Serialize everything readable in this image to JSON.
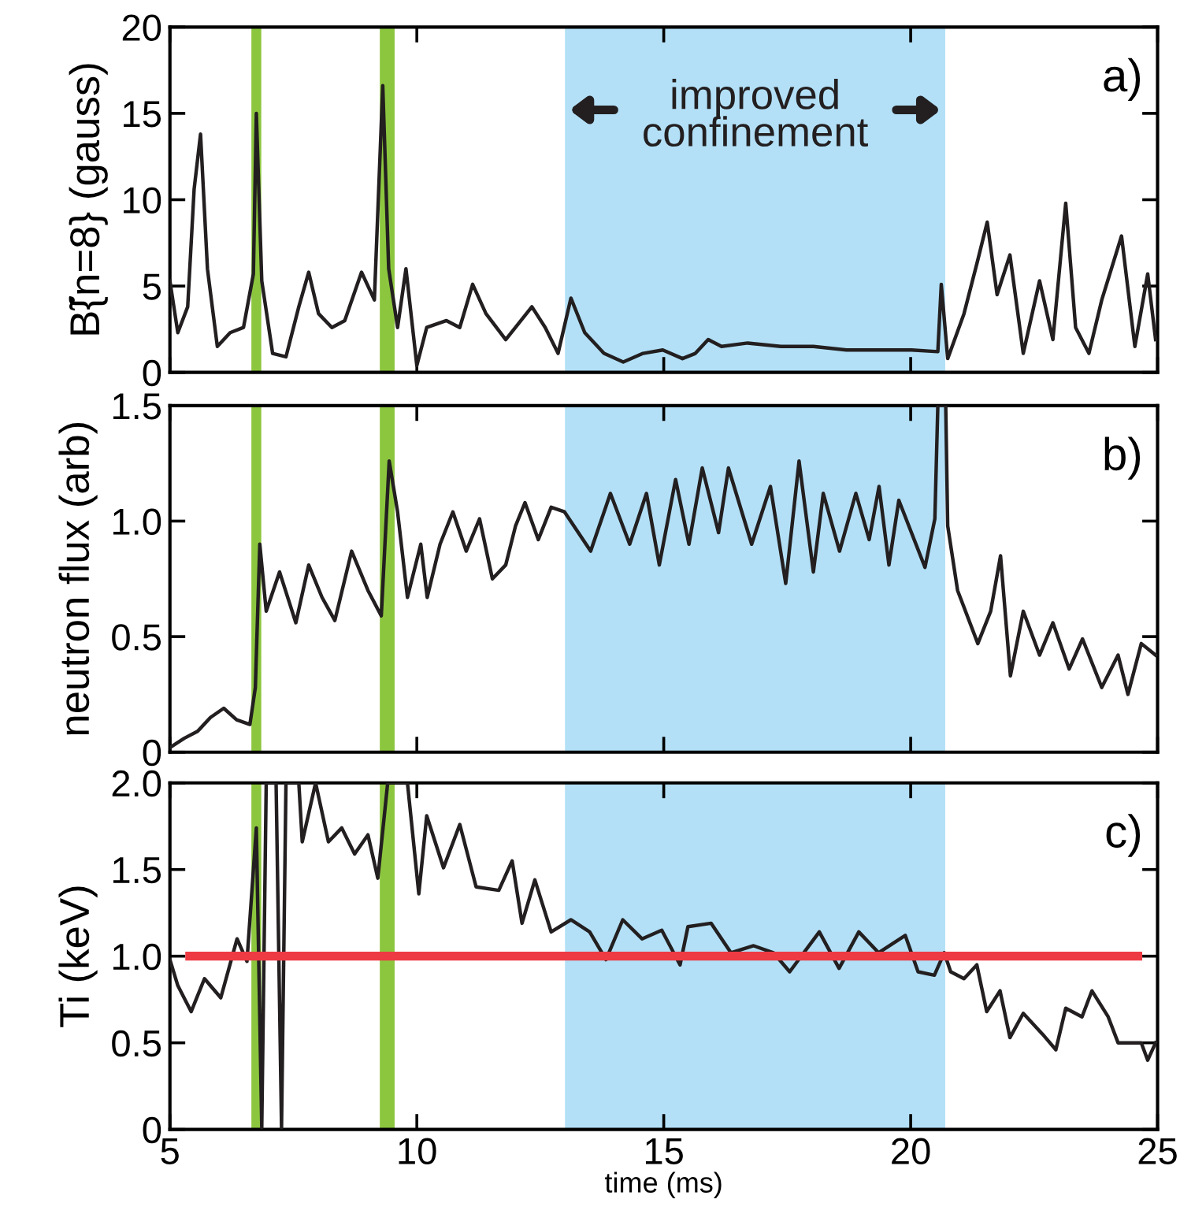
{
  "chart_data": [
    {
      "type": "line",
      "ylabel": "B̃{n=8} (gauss)",
      "annotations": [
        "a)"
      ],
      "xlim": [
        5,
        25
      ],
      "xticks": [
        5,
        10,
        15,
        20,
        25
      ],
      "ylim": [
        0,
        20
      ],
      "yticks": [
        0,
        5,
        10,
        15,
        20
      ],
      "tick_labels": "y",
      "grid": false,
      "legend": false,
      "bands": [
        {
          "axis": "x",
          "from": 6.65,
          "to": 6.85,
          "color": "#8cc63f"
        },
        {
          "axis": "x",
          "from": 9.25,
          "to": 9.55,
          "color": "#8cc63f"
        },
        {
          "axis": "x",
          "from": 13.0,
          "to": 20.7,
          "color": "#b3e0f7",
          "label": "improved\nconfinement"
        }
      ],
      "series": [
        {
          "color": "#231f20",
          "x": [
            5.0,
            5.16,
            5.36,
            5.49,
            5.62,
            5.76,
            5.96,
            6.22,
            6.49,
            6.69,
            6.75,
            6.86,
            7.08,
            7.35,
            7.61,
            7.81,
            8.01,
            8.28,
            8.54,
            8.88,
            9.14,
            9.31,
            9.43,
            9.61,
            9.78,
            10.0,
            10.2,
            10.6,
            10.87,
            11.13,
            11.4,
            11.8,
            12.33,
            12.6,
            12.86,
            13.12,
            13.4,
            13.79,
            14.18,
            14.58,
            14.98,
            15.38,
            15.64,
            15.9,
            16.17,
            16.7,
            17.37,
            18.03,
            18.7,
            19.36,
            20.02,
            20.55,
            20.62,
            20.75,
            21.08,
            21.35,
            21.55,
            21.75,
            22.01,
            22.28,
            22.61,
            22.88,
            23.14,
            23.34,
            23.61,
            23.87,
            24.27,
            24.54,
            24.8,
            24.96
          ],
          "values": [
            5.3,
            2.3,
            3.8,
            10.6,
            13.8,
            6.0,
            1.5,
            2.3,
            2.6,
            5.7,
            15.0,
            5.3,
            1.1,
            0.9,
            3.8,
            5.8,
            3.4,
            2.6,
            3.0,
            5.8,
            4.2,
            16.6,
            6.0,
            2.6,
            6.0,
            0.4,
            2.6,
            3.0,
            2.6,
            5.1,
            3.4,
            1.9,
            3.8,
            2.6,
            1.1,
            4.3,
            2.3,
            1.1,
            0.6,
            1.1,
            1.3,
            0.8,
            1.1,
            1.9,
            1.5,
            1.7,
            1.5,
            1.5,
            1.3,
            1.3,
            1.3,
            1.2,
            5.1,
            0.8,
            3.4,
            6.4,
            8.7,
            4.5,
            6.8,
            1.1,
            5.3,
            1.9,
            9.8,
            2.6,
            1.1,
            4.2,
            7.9,
            1.5,
            5.7,
            1.9
          ]
        }
      ]
    },
    {
      "type": "line",
      "ylabel": "neutron flux (arb)",
      "annotations": [
        "b)"
      ],
      "xlim": [
        5,
        25
      ],
      "xticks": [
        5,
        10,
        15,
        20,
        25
      ],
      "ylim": [
        0,
        1.5
      ],
      "yticks": [
        0,
        {
          "value": 0.5,
          "label": "0.5"
        },
        {
          "value": 1.0,
          "label": "1.0"
        },
        {
          "value": 1.5,
          "label": "1.5"
        }
      ],
      "tick_labels": "y",
      "grid": false,
      "legend": false,
      "bands": [
        {
          "axis": "x",
          "from": 6.65,
          "to": 6.85,
          "color": "#8cc63f"
        },
        {
          "axis": "x",
          "from": 9.25,
          "to": 9.55,
          "color": "#8cc63f"
        },
        {
          "axis": "x",
          "from": 13.0,
          "to": 20.7,
          "color": "#b3e0f7"
        }
      ],
      "series": [
        {
          "color": "#231f20",
          "x": [
            5.0,
            5.29,
            5.56,
            5.82,
            6.09,
            6.35,
            6.62,
            6.73,
            6.82,
            6.95,
            7.22,
            7.55,
            7.81,
            8.08,
            8.34,
            8.68,
            9.01,
            9.28,
            9.44,
            9.61,
            9.81,
            10.08,
            10.21,
            10.47,
            10.73,
            11.0,
            11.27,
            11.53,
            11.8,
            12.0,
            12.19,
            12.46,
            12.72,
            12.99,
            13.52,
            13.92,
            14.31,
            14.65,
            14.91,
            15.24,
            15.51,
            15.78,
            16.11,
            16.31,
            16.78,
            17.16,
            17.47,
            17.74,
            18.03,
            18.23,
            18.56,
            18.89,
            19.16,
            19.36,
            19.56,
            19.76,
            20.29,
            20.49,
            20.55,
            20.71,
            20.75,
            20.95,
            21.36,
            21.62,
            21.82,
            22.02,
            22.28,
            22.61,
            22.88,
            23.21,
            23.48,
            23.87,
            24.2,
            24.4,
            24.67,
            24.96
          ],
          "values": [
            0.02,
            0.06,
            0.09,
            0.15,
            0.19,
            0.14,
            0.12,
            0.28,
            0.9,
            0.61,
            0.78,
            0.56,
            0.81,
            0.67,
            0.57,
            0.87,
            0.7,
            0.59,
            1.26,
            1.04,
            0.67,
            0.9,
            0.67,
            0.9,
            1.04,
            0.87,
            1.01,
            0.75,
            0.81,
            0.98,
            1.08,
            0.92,
            1.06,
            1.04,
            0.87,
            1.12,
            0.9,
            1.12,
            0.81,
            1.18,
            0.9,
            1.23,
            0.95,
            1.23,
            0.9,
            1.15,
            0.73,
            1.26,
            0.78,
            1.12,
            0.87,
            1.12,
            0.92,
            1.15,
            0.81,
            1.09,
            0.8,
            1.01,
            1.5,
            1.5,
            0.98,
            0.7,
            0.47,
            0.61,
            0.85,
            0.33,
            0.61,
            0.42,
            0.56,
            0.36,
            0.49,
            0.28,
            0.42,
            0.25,
            0.47,
            0.42
          ]
        }
      ]
    },
    {
      "type": "line",
      "ylabel": "Ti (keV)",
      "xlabel": "time (ms)",
      "annotations": [
        "c)"
      ],
      "xlim": [
        5,
        25
      ],
      "xticks": [
        5,
        10,
        15,
        20,
        25
      ],
      "ylim": [
        0,
        2.0
      ],
      "yticks": [
        0,
        {
          "value": 0.5,
          "label": "0.5"
        },
        {
          "value": 1.0,
          "label": "1.0"
        },
        {
          "value": 1.5,
          "label": "1.5"
        },
        {
          "value": 2.0,
          "label": "2.0"
        }
      ],
      "grid": false,
      "legend": false,
      "bands": [
        {
          "axis": "x",
          "from": 6.65,
          "to": 6.85,
          "color": "#8cc63f"
        },
        {
          "axis": "x",
          "from": 9.25,
          "to": 9.55,
          "color": "#8cc63f"
        },
        {
          "axis": "x",
          "from": 13.0,
          "to": 20.7,
          "color": "#b3e0f7"
        }
      ],
      "ref_lines": [
        {
          "axis": "y",
          "value": 1.0,
          "color": "#ee3a43"
        }
      ],
      "series": [
        {
          "color": "#231f20",
          "x": [
            5.0,
            5.16,
            5.43,
            5.7,
            6.03,
            6.36,
            6.56,
            6.75,
            6.86,
            6.95,
            7.15,
            7.26,
            7.35,
            7.61,
            7.68,
            7.95,
            8.21,
            8.48,
            8.74,
            9.01,
            9.21,
            9.41,
            9.81,
            10.04,
            10.2,
            10.54,
            10.87,
            11.2,
            11.66,
            11.93,
            12.13,
            12.39,
            12.72,
            13.12,
            13.5,
            13.83,
            14.17,
            14.56,
            14.96,
            15.33,
            15.49,
            15.96,
            16.36,
            16.82,
            17.22,
            17.55,
            18.15,
            18.55,
            18.95,
            19.35,
            19.89,
            20.15,
            20.48,
            20.68,
            20.81,
            21.08,
            21.34,
            21.54,
            21.81,
            22.01,
            22.28,
            22.67,
            22.94,
            23.14,
            23.47,
            23.67,
            24.0,
            24.2,
            24.67,
            24.8,
            24.96
          ],
          "values": [
            0.98,
            0.83,
            0.68,
            0.87,
            0.76,
            1.1,
            0.97,
            1.74,
            0.01,
            2.0,
            2.0,
            0.01,
            2.0,
            2.0,
            1.66,
            2.0,
            1.66,
            1.74,
            1.59,
            1.7,
            1.45,
            2.0,
            2.0,
            1.36,
            1.81,
            1.51,
            1.76,
            1.4,
            1.38,
            1.55,
            1.19,
            1.44,
            1.14,
            1.21,
            1.14,
            0.98,
            1.21,
            1.1,
            1.15,
            0.95,
            1.17,
            1.19,
            1.02,
            1.06,
            1.02,
            0.91,
            1.14,
            0.93,
            1.14,
            1.02,
            1.12,
            0.91,
            0.89,
            1.02,
            0.91,
            0.87,
            0.95,
            0.68,
            0.8,
            0.53,
            0.67,
            0.55,
            0.46,
            0.7,
            0.65,
            0.8,
            0.65,
            0.5,
            0.5,
            0.4,
            0.5
          ]
        }
      ]
    }
  ]
}
